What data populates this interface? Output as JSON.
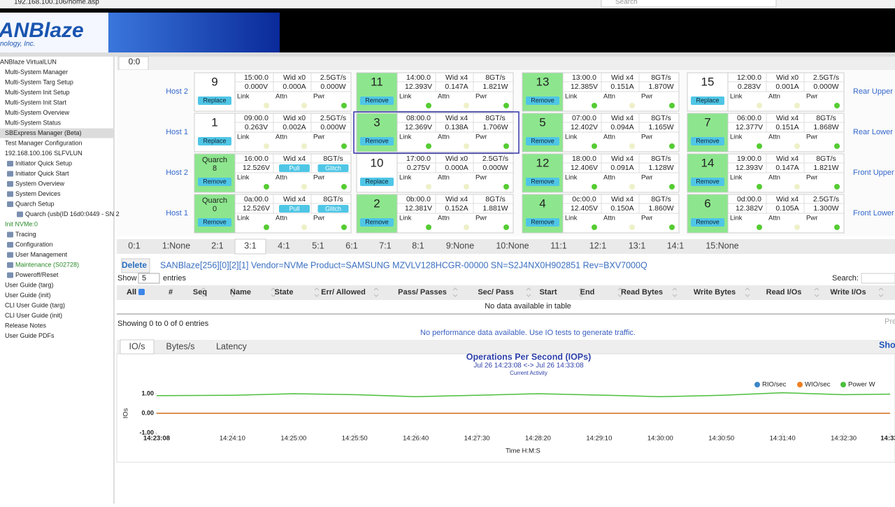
{
  "browser": {
    "url": "192.168.100.106/home.asp",
    "search": "Search"
  },
  "header": {
    "logo": "ANBlaze",
    "tagline": "nology, Inc."
  },
  "sidebar": [
    "ANBlaze VirtualLUN",
    "Multi-System Manager",
    "Multi-System Targ Setup",
    "Multi-System Init Setup",
    "Multi-System Init Start",
    "Multi-System Overview",
    "Multi-System Status",
    "SBExpress Manager (Beta)",
    "Test Manager Configuration",
    "192.168.100.106 SLFVLUN",
    "Initiator Quick Setup",
    "Initiator Quick Start",
    "System Overview",
    "System Devices",
    "Quarch Setup",
    "Quarch (usb(ID 16d0:0449 - SN 2",
    "Init NVMe:0",
    "Tracing",
    "Configuration",
    "User Management",
    "Maintenance (S02728)",
    "Poweroff/Reset",
    "User Guide (targ)",
    "User Guide (init)",
    "CLI User Guide (targ)",
    "CLI User Guide (init)",
    "Release Notes",
    "User Guide PDFs"
  ],
  "slot_tab": "0:0",
  "slots": {
    "indicators": [
      "Link",
      "Attn",
      "Pwr"
    ],
    "rows": [
      {
        "left": "Host 2",
        "right": "Rear Upper",
        "cards": [
          {
            "id": "9",
            "color": "#ffffff",
            "row1": [
              "15:00.0",
              "Wid x0",
              "2.5GT/s"
            ],
            "row2": [
              "0.000V",
              "0.000A",
              "0.000W"
            ],
            "button": "Replace",
            "leds": [
              "#eef0c8",
              "#eef0c8",
              "#55cc33"
            ]
          },
          {
            "id": "11",
            "color": "#8de68d",
            "row1": [
              "14:00.0",
              "Wid x4",
              "8GT/s"
            ],
            "row2": [
              "12.393V",
              "0.147A",
              "1.821W"
            ],
            "button": "Remove",
            "leds": [
              "#55cc33",
              "#eef0c8",
              "#55cc33"
            ]
          },
          {
            "id": "13",
            "color": "#8de68d",
            "row1": [
              "13:00.0",
              "Wid x4",
              "8GT/s"
            ],
            "row2": [
              "12.385V",
              "0.151A",
              "1.870W"
            ],
            "button": "Remove",
            "leds": [
              "#55cc33",
              "#eef0c8",
              "#55cc33"
            ]
          },
          {
            "id": "15",
            "color": "#ffffff",
            "row1": [
              "12:00.0",
              "Wid x0",
              "2.5GT/s"
            ],
            "row2": [
              "0.283V",
              "0.001A",
              "0.000W"
            ],
            "button": "Replace",
            "leds": [
              "#eef0c8",
              "#eef0c8",
              "#55cc33"
            ]
          }
        ]
      },
      {
        "left": "Host 1",
        "right": "Rear Lower",
        "cards": [
          {
            "id": "1",
            "color": "#ffffff",
            "row1": [
              "09:00.0",
              "Wid x0",
              "2.5GT/s"
            ],
            "row2": [
              "0.263V",
              "0.002A",
              "0.000W"
            ],
            "button": "Replace",
            "leds": [
              "#eef0c8",
              "#eef0c8",
              "#55cc33"
            ]
          },
          {
            "id": "3",
            "color": "#8de68d",
            "row1": [
              "08:00.0",
              "Wid x4",
              "8GT/s"
            ],
            "row2": [
              "12.369V",
              "0.138A",
              "1.706W"
            ],
            "button": "Remove",
            "leds": [
              "#55cc33",
              "#eef0c8",
              "#55cc33"
            ]
          },
          {
            "id": "5",
            "color": "#8de68d",
            "row1": [
              "07:00.0",
              "Wid x4",
              "8GT/s"
            ],
            "row2": [
              "12.402V",
              "0.094A",
              "1.165W"
            ],
            "button": "Remove",
            "leds": [
              "#55cc33",
              "#eef0c8",
              "#55cc33"
            ]
          },
          {
            "id": "7",
            "color": "#8de68d",
            "row1": [
              "06:00.0",
              "Wid x4",
              "8GT/s"
            ],
            "row2": [
              "12.377V",
              "0.151A",
              "1.868W"
            ],
            "button": "Remove",
            "leds": [
              "#55cc33",
              "#eef0c8",
              "#55cc33"
            ]
          }
        ]
      },
      {
        "left": "Host 2",
        "right": "Front Upper",
        "cards": [
          {
            "label": "Quarch",
            "id": "8",
            "color": "#8de68d",
            "row1": [
              "16:00.0",
              "Wid x4",
              "8GT/s"
            ],
            "row2": [
              "12.526V"
            ],
            "controls": [
              "Pull",
              "Glitch"
            ],
            "button": "Remove",
            "leds": [
              "#55cc33",
              "#eef0c8",
              "#55cc33"
            ]
          },
          {
            "id": "10",
            "color": "#ffffff",
            "row1": [
              "17:00.0",
              "Wid x0",
              "2.5GT/s"
            ],
            "row2": [
              "0.275V",
              "0.000A",
              "0.000W"
            ],
            "button": "Replace",
            "leds": [
              "#eef0c8",
              "#eef0c8",
              "#55cc33"
            ]
          },
          {
            "id": "12",
            "color": "#8de68d",
            "row1": [
              "18:00.0",
              "Wid x4",
              "8GT/s"
            ],
            "row2": [
              "12.406V",
              "0.091A",
              "1.128W"
            ],
            "button": "Remove",
            "leds": [
              "#55cc33",
              "#eef0c8",
              "#55cc33"
            ]
          },
          {
            "id": "14",
            "color": "#8de68d",
            "row1": [
              "19:00.0",
              "Wid x4",
              "8GT/s"
            ],
            "row2": [
              "12.393V",
              "0.147A",
              "1.821W"
            ],
            "button": "Remove",
            "leds": [
              "#55cc33",
              "#eef0c8",
              "#55cc33"
            ]
          }
        ]
      },
      {
        "left": "Host 1",
        "right": "Front Lower",
        "cards": [
          {
            "label": "Quarch",
            "id": "0",
            "color": "#8de68d",
            "row1": [
              "0a:00.0",
              "Wid x4",
              "8GT/s"
            ],
            "row2": [
              "12.526V"
            ],
            "controls": [
              "Pull",
              "Glitch"
            ],
            "button": "Remove",
            "leds": [
              "#55cc33",
              "#eef0c8",
              "#55cc33"
            ]
          },
          {
            "id": "2",
            "color": "#8de68d",
            "row1": [
              "0b:00.0",
              "Wid x4",
              "8GT/s"
            ],
            "row2": [
              "12.381V",
              "0.152A",
              "1.881W"
            ],
            "button": "Remove",
            "leds": [
              "#55cc33",
              "#eef0c8",
              "#55cc33"
            ]
          },
          {
            "id": "4",
            "color": "#8de68d",
            "row1": [
              "0c:00.0",
              "Wid x4",
              "8GT/s"
            ],
            "row2": [
              "12.405V",
              "0.150A",
              "1.860W"
            ],
            "button": "Remove",
            "leds": [
              "#55cc33",
              "#eef0c8",
              "#55cc33"
            ]
          },
          {
            "id": "6",
            "color": "#8de68d",
            "row1": [
              "0d:00.0",
              "Wid x4",
              "2.5GT/s"
            ],
            "row2": [
              "12.382V",
              "0.105A",
              "1.300W"
            ],
            "button": "Remove",
            "leds": [
              "#55cc33",
              "#eef0c8",
              "#55cc33"
            ]
          }
        ]
      }
    ]
  },
  "ports": [
    "0:1",
    "1:None",
    "2:1",
    "3:1",
    "4:1",
    "5:1",
    "6:1",
    "7:1",
    "8:1",
    "9:None",
    "10:None",
    "11:1",
    "12:1",
    "13:1",
    "14:1",
    "15:None"
  ],
  "device": {
    "button": "Delete",
    "info": "SANBlaze[256][0][2][1] Vendor=NVMe Product=SAMSUNG MZVLV128HCGR-00000 SN=S2J4NX0H902851 Rev=BXV7000Q"
  },
  "table": {
    "show": "Show",
    "length": "5",
    "entries": "entries",
    "search": "Search:",
    "all": "All",
    "columns": [
      "#",
      "Seq",
      "Name",
      "State",
      "Err/ Allowed",
      "Pass/ Passes",
      "Sec/ Pass",
      "Start",
      "End",
      "Read Bytes",
      "Write Bytes",
      "Read I/Os",
      "Write I/Os"
    ],
    "empty": "No data available in table",
    "info": "Showing 0 to 0 of 0 entries",
    "paging": "Pre",
    "perf_note": "No performance data available. Use IO tests to generate traffic."
  },
  "chart_tabs": {
    "tabs": [
      "IO/s",
      "Bytes/s",
      "Latency"
    ],
    "more": "Sho"
  },
  "chart_data": {
    "type": "line",
    "title": "Operations Per Second (IOPs)",
    "subtitle": "Jul 26 14:23:08 <-> Jul 26 14:33:08",
    "caption": "Current Activity",
    "ylabel": "IOs",
    "xlabel": "Time H:M:S",
    "x": [
      51788,
      51850,
      51900,
      51950,
      52000,
      52050,
      52100,
      52150,
      52200,
      52250,
      52300,
      52350,
      52388
    ],
    "series": [
      {
        "name": "RIO/sec",
        "color": "#3b86c8",
        "values": [
          0,
          0,
          0,
          0,
          0,
          0,
          0,
          0,
          0,
          0,
          0,
          0,
          0
        ]
      },
      {
        "name": "WIO/sec",
        "color": "#f07f1f",
        "values": [
          0,
          0,
          0,
          0,
          0,
          0,
          0,
          0,
          0,
          0,
          0,
          0,
          0
        ]
      },
      {
        "name": "Power W",
        "color": "#4cbf3c",
        "values": [
          0.9,
          0.92,
          1.0,
          0.95,
          0.85,
          0.92,
          1.0,
          0.93,
          0.85,
          0.92,
          1.05,
          0.95,
          0.98
        ]
      }
    ],
    "xlim": [
      51788,
      52388
    ],
    "xticks": [
      {
        "value": 51788,
        "label": "14:23:08"
      },
      {
        "value": 51850,
        "label": "14:24:10"
      },
      {
        "value": 51900,
        "label": "14:25:00"
      },
      {
        "value": 51950,
        "label": "14:25:50"
      },
      {
        "value": 52000,
        "label": "14:26:40"
      },
      {
        "value": 52050,
        "label": "14:27:30"
      },
      {
        "value": 52100,
        "label": "14:28:20"
      },
      {
        "value": 52150,
        "label": "14:29:10"
      },
      {
        "value": 52200,
        "label": "14:30:00"
      },
      {
        "value": 52250,
        "label": "14:30:50"
      },
      {
        "value": 52300,
        "label": "14:31:40"
      },
      {
        "value": 52350,
        "label": "14:32:30"
      },
      {
        "value": 52388,
        "label": "14:33:"
      }
    ],
    "ylim": [
      -1,
      1
    ],
    "yticks": [
      {
        "value": 1,
        "label": "1.00"
      },
      {
        "value": 0,
        "label": "0.00"
      },
      {
        "value": -1,
        "label": "-1.00"
      }
    ]
  }
}
